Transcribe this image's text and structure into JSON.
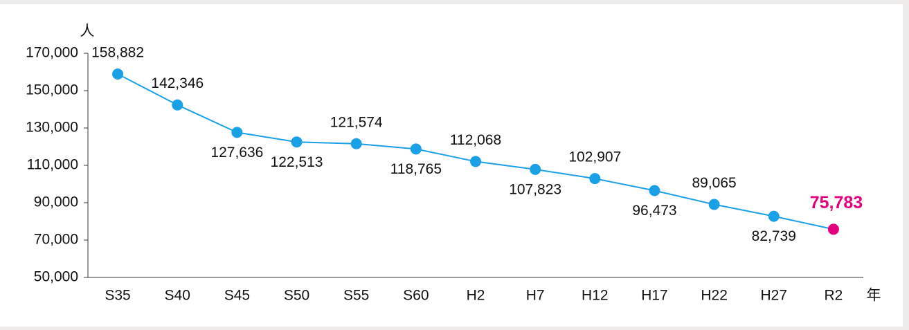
{
  "chart_data": {
    "type": "line",
    "y_unit": "人",
    "x_unit": "年",
    "categories": [
      "S35",
      "S40",
      "S45",
      "S50",
      "S55",
      "S60",
      "H2",
      "H7",
      "H12",
      "H17",
      "H22",
      "H27",
      "R2"
    ],
    "values": [
      158882,
      142346,
      127636,
      122513,
      121574,
      118765,
      112068,
      107823,
      102907,
      96473,
      89065,
      82739,
      75783
    ],
    "value_labels": [
      "158,882",
      "142,346",
      "127,636",
      "122,513",
      "121,574",
      "118,765",
      "112,068",
      "107,823",
      "102,907",
      "96,473",
      "89,065",
      "82,739",
      "75,783"
    ],
    "color": "#1aa0e6",
    "point_colors": [
      "#1aa0e6",
      "#1aa0e6",
      "#1aa0e6",
      "#1aa0e6",
      "#1aa0e6",
      "#1aa0e6",
      "#1aa0e6",
      "#1aa0e6",
      "#1aa0e6",
      "#1aa0e6",
      "#1aa0e6",
      "#1aa0e6",
      "#e4007f"
    ],
    "ylim": [
      50000,
      170000
    ],
    "yticks": [
      {
        "value": 50000,
        "label": "50,000"
      },
      {
        "value": 70000,
        "label": "70,000"
      },
      {
        "value": 90000,
        "label": "90,000"
      },
      {
        "value": 110000,
        "label": "110,000"
      },
      {
        "value": 130000,
        "label": "130,000"
      },
      {
        "value": 150000,
        "label": "150,000"
      },
      {
        "value": 170000,
        "label": "170,000"
      }
    ],
    "grid": false
  }
}
